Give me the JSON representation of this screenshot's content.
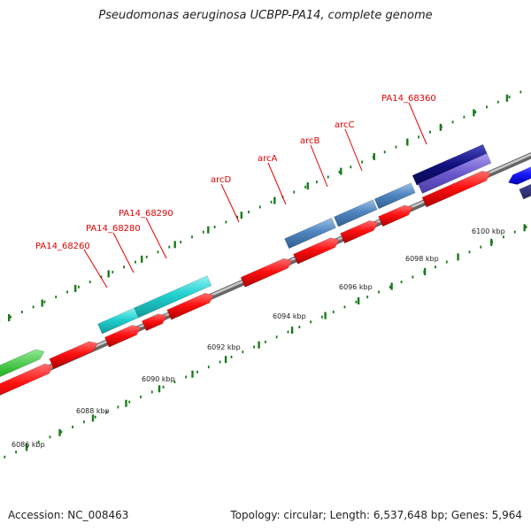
{
  "title": "Pseudomonas aeruginosa UCBPP-PA14, complete genome",
  "footer": {
    "accession": "Accession: NC_008463",
    "summary": "Topology: circular; Length: 6,537,648 bp; Genes: 5,964"
  },
  "colors": {
    "cds_red": "#ff1010",
    "cyan": "#22d0d0",
    "steelblue": "#4f86c0",
    "navy": "#101080",
    "purple": "#6a5acd",
    "blue": "#1a1aff",
    "darkslate": "#3a3a88",
    "green": "#33bb33",
    "gray": "#bbbbbb",
    "backbone": "#888888",
    "tick": "#1a7a1a",
    "label_red": "#e00000"
  },
  "diagram": {
    "scale_kbp": [
      6086,
      6088,
      6090,
      6092,
      6094,
      6096,
      6098,
      6100
    ],
    "scale_labels": [
      "6086 kbp",
      "6088 kbp",
      "6090 kbp",
      "6092 kbp",
      "6094 kbp",
      "6096 kbp",
      "6098 kbp",
      "6100 kbp"
    ],
    "gene_labels": [
      "PA14_68260",
      "PA14_68280",
      "PA14_68290",
      "arcD",
      "arcA",
      "arcB",
      "arcC",
      "PA14_68360"
    ]
  }
}
